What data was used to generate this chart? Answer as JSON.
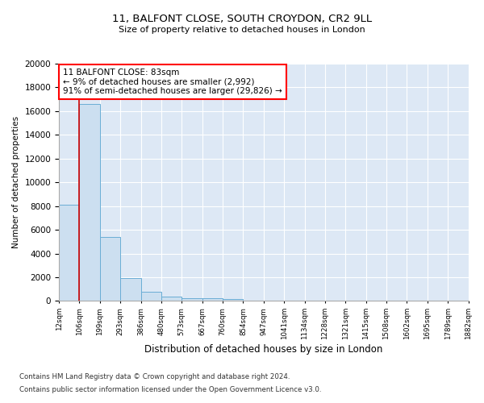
{
  "title_line1": "11, BALFONT CLOSE, SOUTH CROYDON, CR2 9LL",
  "title_line2": "Size of property relative to detached houses in London",
  "xlabel": "Distribution of detached houses by size in London",
  "ylabel": "Number of detached properties",
  "footnote_line1": "Contains HM Land Registry data © Crown copyright and database right 2024.",
  "footnote_line2": "Contains public sector information licensed under the Open Government Licence v3.0.",
  "annotation_title": "11 BALFONT CLOSE: 83sqm",
  "annotation_line1": "← 9% of detached houses are smaller (2,992)",
  "annotation_line2": "91% of semi-detached houses are larger (29,826) →",
  "property_size_bin": 1,
  "bar_color": "#ccdff0",
  "bar_edge_color": "#6aadd5",
  "marker_color": "#cc0000",
  "background_color": "#dde8f5",
  "ylim": [
    0,
    20000
  ],
  "yticks": [
    0,
    2000,
    4000,
    6000,
    8000,
    10000,
    12000,
    14000,
    16000,
    18000,
    20000
  ],
  "bin_labels": [
    "12sqm",
    "106sqm",
    "199sqm",
    "293sqm",
    "386sqm",
    "480sqm",
    "573sqm",
    "667sqm",
    "760sqm",
    "854sqm",
    "947sqm",
    "1041sqm",
    "1134sqm",
    "1228sqm",
    "1321sqm",
    "1415sqm",
    "1508sqm",
    "1602sqm",
    "1695sqm",
    "1789sqm",
    "1882sqm"
  ],
  "bar_heights": [
    8100,
    16600,
    5400,
    1900,
    750,
    350,
    220,
    200,
    160,
    0,
    0,
    0,
    0,
    0,
    0,
    0,
    0,
    0,
    0,
    0
  ]
}
